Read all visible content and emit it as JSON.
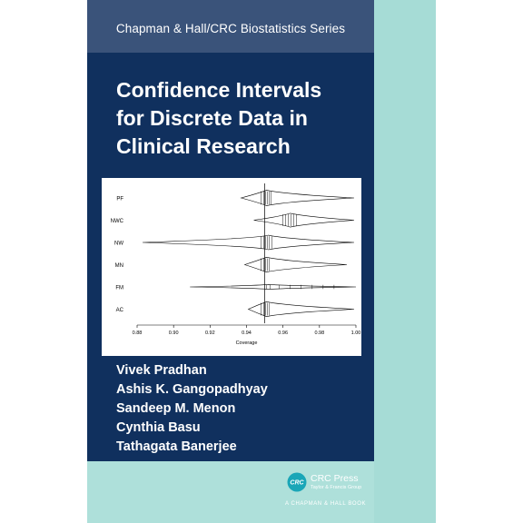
{
  "cover": {
    "series_title": "Chapman & Hall/CRC Biostatistics Series",
    "title_lines": [
      "Confidence Intervals",
      "for Discrete Data in",
      "Clinical Research"
    ],
    "authors": [
      "Vivek Pradhan",
      "Ashis K. Gangopadhyay",
      "Sandeep M. Menon",
      "Cynthia Basu",
      "Tathagata Banerjee"
    ],
    "colors": {
      "series_band": "#3a537a",
      "navy": "#10305e",
      "teal": "#a6dcd6",
      "logo": "#1aa6b7"
    },
    "publisher": {
      "logo_text": "CRC",
      "name": "CRC Press",
      "group": "Taylor & Francis Group",
      "imprint": "A CHAPMAN & HALL BOOK"
    }
  },
  "chart_data": {
    "type": "violin",
    "xlabel": "Coverage",
    "ylabel": "",
    "xlim": [
      0.88,
      1.0
    ],
    "x_ticks": [
      "0.88",
      "0.90",
      "0.92",
      "0.94",
      "0.96",
      "0.98",
      "1.00"
    ],
    "reference_line": 0.95,
    "categories": [
      "PF",
      "NWC",
      "NW",
      "MN",
      "FM",
      "AC"
    ],
    "series": [
      {
        "label": "PF",
        "min": 0.937,
        "max": 0.999,
        "mode": 0.951,
        "peak_half_width": 0.45,
        "ticks": [
          0.948,
          0.9495,
          0.9505,
          0.9515,
          0.9525,
          0.9535
        ]
      },
      {
        "label": "NWC",
        "min": 0.944,
        "max": 0.999,
        "mode": 0.964,
        "peak_half_width": 0.4,
        "ticks": [
          0.96,
          0.9615,
          0.963,
          0.9645,
          0.966,
          0.9675
        ]
      },
      {
        "label": "NW",
        "min": 0.883,
        "max": 0.999,
        "mode": 0.952,
        "peak_half_width": 0.42,
        "ticks": [
          0.948,
          0.9495,
          0.9505,
          0.9515,
          0.9525,
          0.954
        ]
      },
      {
        "label": "MN",
        "min": 0.939,
        "max": 0.995,
        "mode": 0.951,
        "peak_half_width": 0.43,
        "ticks": [
          0.948,
          0.9495,
          0.9505,
          0.9515,
          0.9525
        ]
      },
      {
        "label": "FM",
        "min": 0.909,
        "max": 1.0,
        "mode": 0.952,
        "peak_half_width": 0.14,
        "ticks": [
          0.951,
          0.953,
          0.958,
          0.964,
          0.97,
          0.976,
          0.982,
          0.988
        ]
      },
      {
        "label": "AC",
        "min": 0.941,
        "max": 0.999,
        "mode": 0.951,
        "peak_half_width": 0.43,
        "ticks": [
          0.948,
          0.9495,
          0.9505,
          0.9515,
          0.9525
        ]
      }
    ]
  }
}
